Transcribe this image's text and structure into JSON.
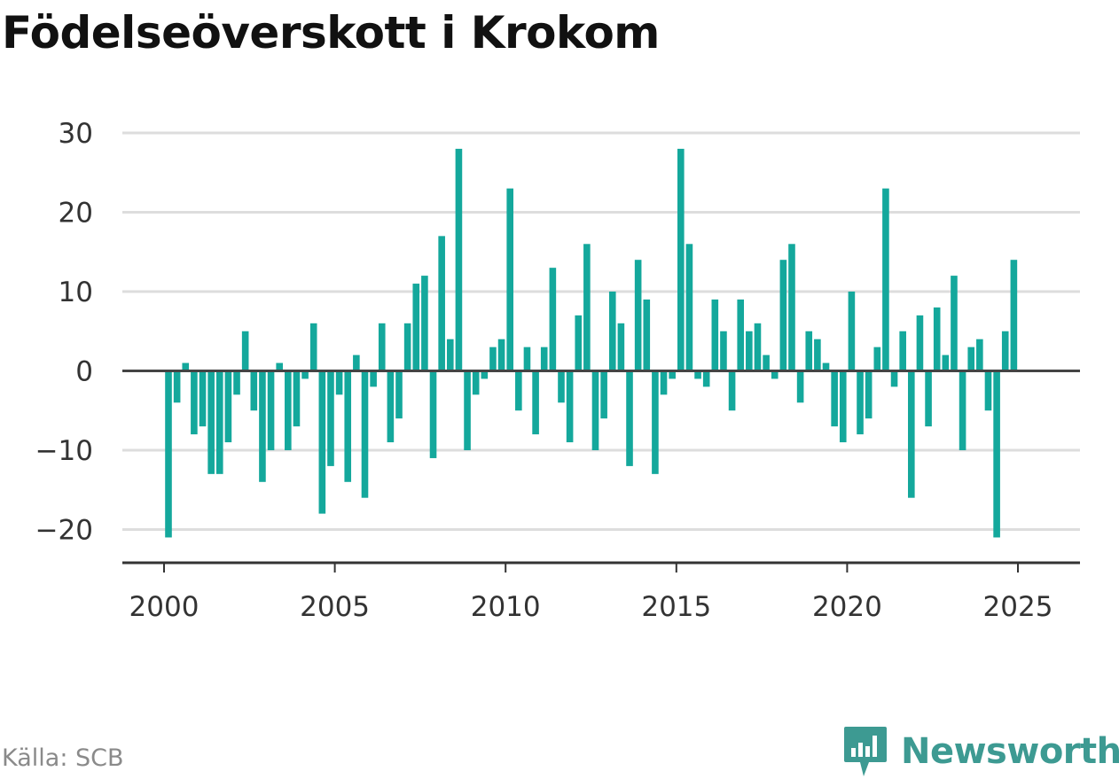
{
  "title": "Födelseöverskott i Krokom",
  "source": "Källa: SCB",
  "brand": {
    "name": "Newsworthy",
    "icon": "newsworthy-logo-icon",
    "color": "#3d9a92"
  },
  "colors": {
    "bar": "#14a89c",
    "grid": "#dddddd",
    "axis": "#333333",
    "zero": "#444444"
  },
  "chart_data": {
    "type": "bar",
    "title": "Födelseöverskott i Krokom",
    "xlabel": "",
    "ylabel": "",
    "ylim": [
      -24,
      30
    ],
    "yticks": [
      30,
      20,
      10,
      0,
      -10,
      -20
    ],
    "ytick_labels": [
      "30",
      "20",
      "10",
      "0",
      "−10",
      "−20"
    ],
    "xticks": [
      2000,
      2005,
      2010,
      2015,
      2020,
      2025
    ],
    "xtick_labels": [
      "2000",
      "2005",
      "2010",
      "2015",
      "2020",
      "2025"
    ],
    "grid": true,
    "legend": "none",
    "x_start": 2000.0,
    "x_step": 0.25,
    "values": [
      -21,
      -4,
      1,
      -8,
      -7,
      -13,
      -13,
      -9,
      -3,
      5,
      -5,
      -14,
      -10,
      1,
      -10,
      -7,
      -1,
      6,
      -18,
      -12,
      -3,
      -14,
      2,
      -16,
      -2,
      6,
      -9,
      -6,
      6,
      11,
      12,
      -11,
      17,
      4,
      28,
      -10,
      -3,
      -1,
      3,
      4,
      23,
      -5,
      3,
      -8,
      3,
      13,
      -4,
      -9,
      7,
      16,
      -10,
      -6,
      10,
      6,
      -12,
      14,
      9,
      -13,
      -3,
      -1,
      28,
      16,
      -1,
      -2,
      9,
      5,
      -5,
      9,
      5,
      6,
      2,
      -1,
      14,
      16,
      -4,
      5,
      4,
      1,
      -7,
      -9,
      10,
      -8,
      -6,
      3,
      23,
      -2,
      5,
      -16,
      7,
      -7,
      8,
      2,
      12,
      -10,
      3,
      4,
      -5,
      -21,
      5,
      14
    ]
  }
}
